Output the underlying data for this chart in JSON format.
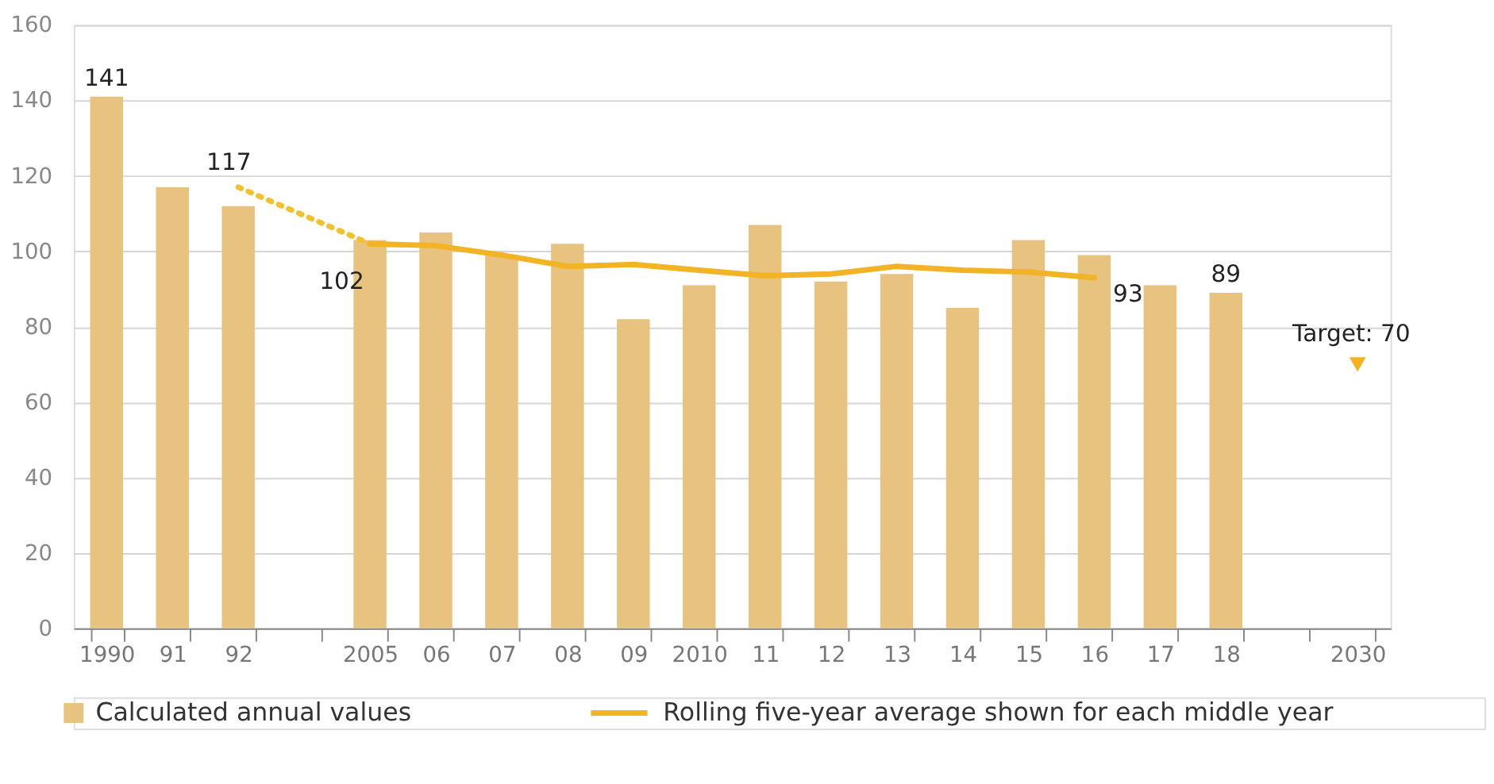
{
  "chart_data": {
    "type": "bar",
    "categories": [
      "1990",
      "91",
      "92",
      null,
      "2005",
      "06",
      "07",
      "08",
      "09",
      "2010",
      "11",
      "12",
      "13",
      "14",
      "15",
      "16",
      "17",
      "18",
      null,
      "2030"
    ],
    "ylim": [
      0,
      160
    ],
    "yticks": [
      0,
      20,
      40,
      60,
      80,
      100,
      120,
      140,
      160
    ],
    "grid": "y",
    "legend": "bottom left",
    "series": [
      {
        "name": "Calculated annual values",
        "color": "#e8c27f",
        "values": [
          141,
          117,
          112,
          null,
          103,
          105,
          99,
          102,
          82,
          91,
          107,
          92,
          94,
          85,
          103,
          99,
          91,
          89,
          null,
          null
        ],
        "value_labels": [
          "141",
          null,
          null,
          null,
          null,
          null,
          null,
          null,
          null,
          null,
          null,
          null,
          null,
          null,
          null,
          null,
          null,
          "89",
          null,
          null
        ]
      },
      {
        "type": "line",
        "line_style": "dotted",
        "color": "#f2c12e",
        "values": [
          null,
          null,
          117,
          null,
          102,
          null,
          null,
          null,
          null,
          null,
          null,
          null,
          null,
          null,
          null,
          null,
          null,
          null,
          null,
          null
        ],
        "value_labels": [
          null,
          null,
          "117",
          null,
          null,
          null,
          null,
          null,
          null,
          null,
          null,
          null,
          null,
          null,
          null,
          null,
          null,
          null,
          null,
          null
        ]
      },
      {
        "name": "Rolling five-year average shown for each middle year",
        "type": "line",
        "line_style": "solid",
        "color": "#f2b325",
        "values": [
          null,
          null,
          null,
          null,
          102,
          101.5,
          99,
          96,
          96.5,
          95,
          93.5,
          94,
          96,
          95,
          94.5,
          93,
          null,
          null,
          null,
          null
        ],
        "value_labels": [
          null,
          null,
          null,
          null,
          "102",
          null,
          null,
          null,
          null,
          null,
          null,
          null,
          null,
          null,
          null,
          "93",
          null,
          null,
          null,
          null
        ]
      },
      {
        "type": "scatter",
        "marker": "triangle",
        "color": "#f5b120",
        "values": [
          null,
          null,
          null,
          null,
          null,
          null,
          null,
          null,
          null,
          null,
          null,
          null,
          null,
          null,
          null,
          null,
          null,
          null,
          null,
          70
        ],
        "value_labels": [
          null,
          null,
          null,
          null,
          null,
          null,
          null,
          null,
          null,
          null,
          null,
          null,
          null,
          null,
          null,
          null,
          null,
          null,
          null,
          "Target: 70"
        ]
      }
    ]
  }
}
